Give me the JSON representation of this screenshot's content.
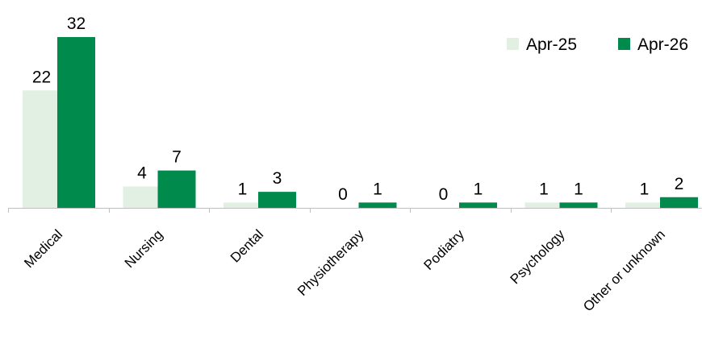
{
  "chart_data": {
    "type": "bar",
    "title": "",
    "xlabel": "",
    "ylabel": "",
    "categories": [
      "Medical",
      "Nursing",
      "Dental",
      "Physiotherapy",
      "Podiatry",
      "Psychology",
      "Other or unknown"
    ],
    "series": [
      {
        "name": "Apr-25",
        "values": [
          22,
          4,
          1,
          0,
          0,
          1,
          1
        ],
        "color": "#e2efe3"
      },
      {
        "name": "Apr-26",
        "values": [
          32,
          7,
          3,
          1,
          1,
          1,
          2
        ],
        "color": "#008a4b"
      }
    ],
    "ylim": [
      0,
      32
    ],
    "grid": false,
    "legend_position": "top-right",
    "data_labels": true
  }
}
